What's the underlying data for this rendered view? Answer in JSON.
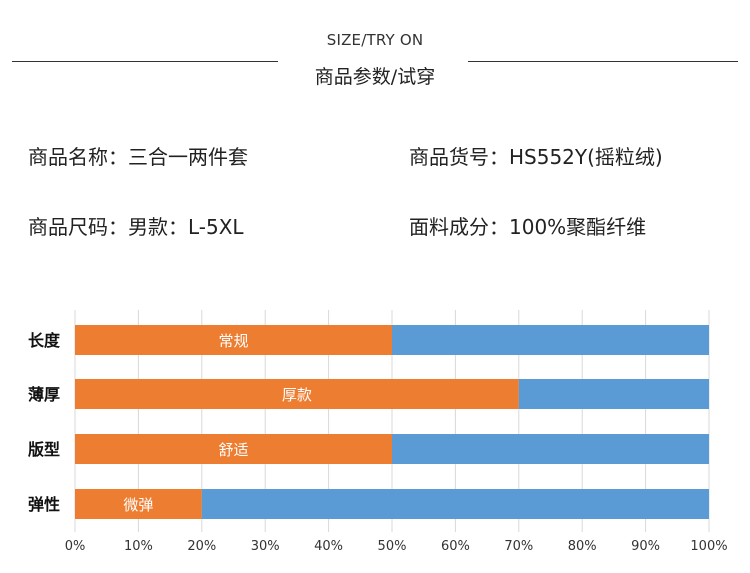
{
  "header": {
    "title_en": "SIZE/TRY ON",
    "title_cn": "商品参数/试穿"
  },
  "specs": [
    {
      "label": "商品名称：",
      "value": "三合一两件套"
    },
    {
      "label": "商品货号：",
      "value": "HS552Y(摇粒绒)"
    },
    {
      "label": "商品尺码：",
      "value": "男款：L-5XL"
    },
    {
      "label": "面料成分：",
      "value": "100%聚酯纤维"
    }
  ],
  "colors": {
    "fill": "#ED7D31",
    "rest": "#5B9BD5",
    "grid": "#D9D9D9"
  },
  "chart_data": {
    "type": "bar",
    "orientation": "horizontal",
    "stacked": true,
    "categories": [
      "长度",
      "薄厚",
      "版型",
      "弹性"
    ],
    "values": [
      50,
      70,
      50,
      20
    ],
    "data_labels": [
      "常规",
      "厚款",
      "舒适",
      "微弹"
    ],
    "xlim": [
      0,
      100
    ],
    "xticks": [
      "0%",
      "10%",
      "20%",
      "30%",
      "40%",
      "50%",
      "60%",
      "70%",
      "80%",
      "90%",
      "100%"
    ],
    "grid": true,
    "title": "",
    "xlabel": "",
    "ylabel": ""
  }
}
